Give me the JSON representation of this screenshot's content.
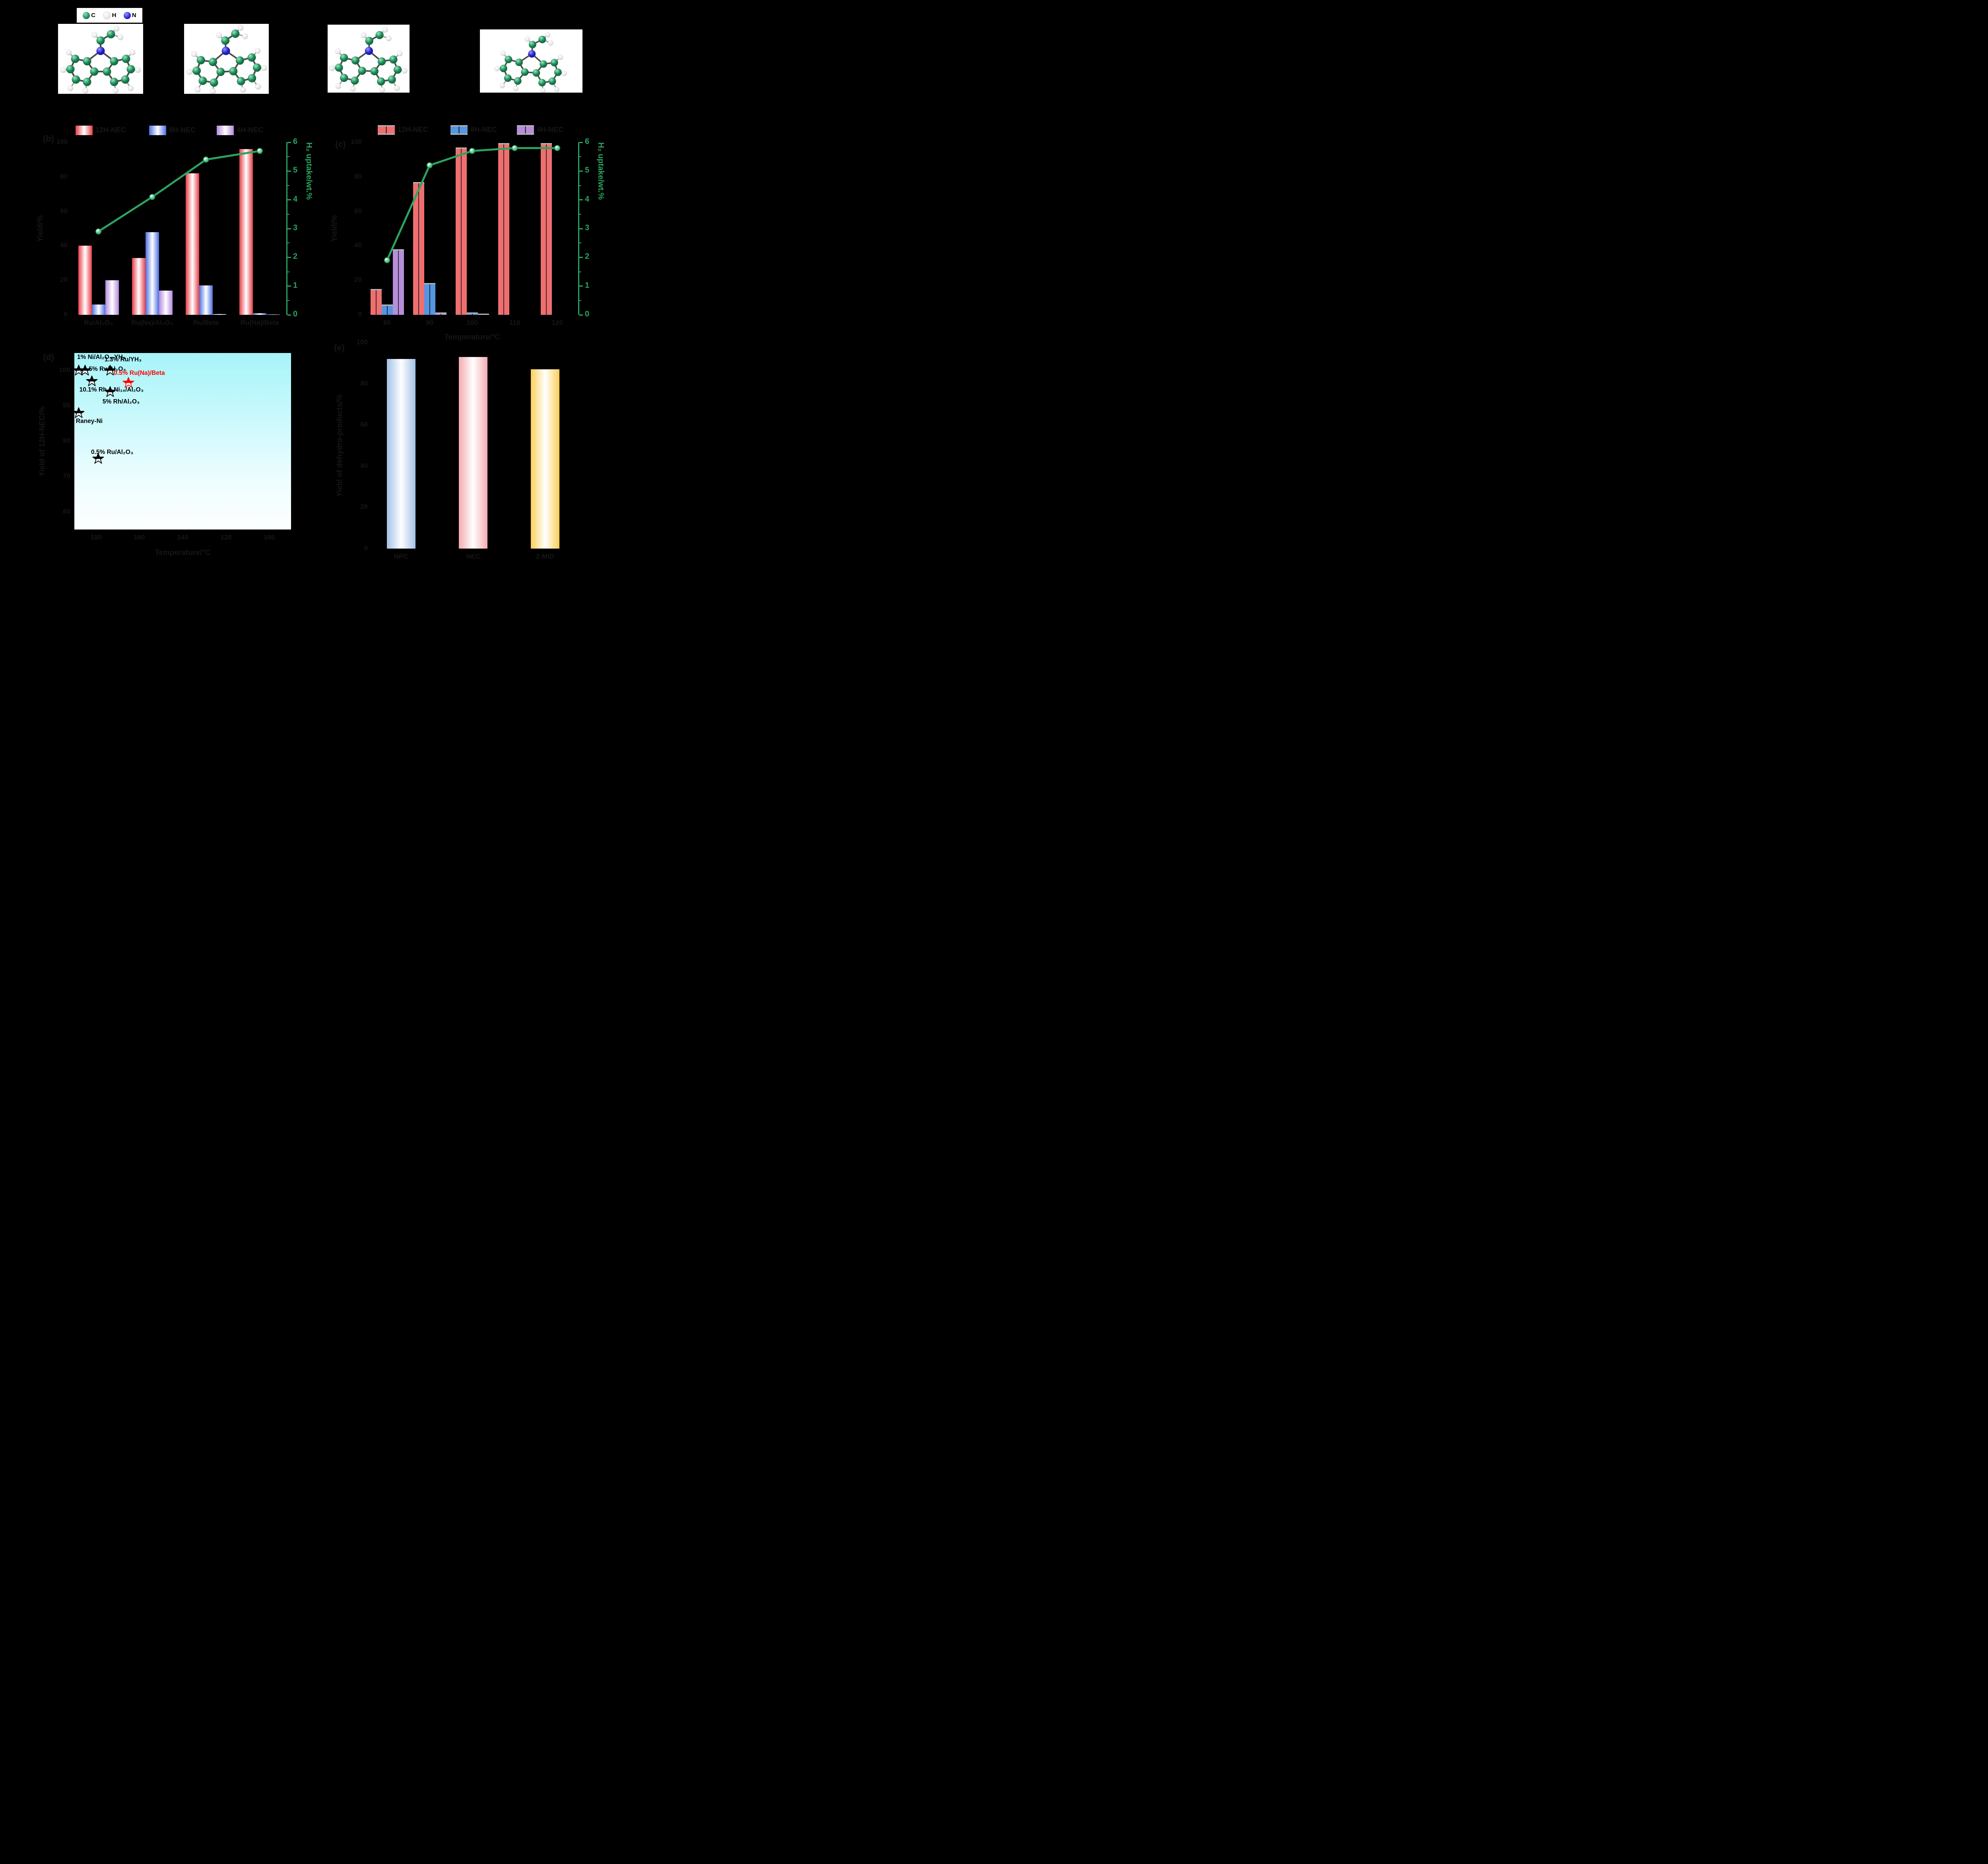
{
  "figure": {
    "bg": "#000000",
    "accent_green": "#2aa45f",
    "panel_bg_scatter_top": "#a6f4f9",
    "panel_labels": {
      "b": "(b)",
      "c": "(c)",
      "d": "(d)",
      "e": "(e)"
    }
  },
  "atom_legend": {
    "items": [
      {
        "symbol": "C",
        "color": "#1d8a57"
      },
      {
        "symbol": "H",
        "color": "#f2f2f2"
      },
      {
        "symbol": "N",
        "color": "#2525cf"
      }
    ]
  },
  "chart_data": [
    {
      "id": "b",
      "type": "bar+line",
      "legend": [
        "12H-NEC",
        "8H-NEC",
        "4H-NEC"
      ],
      "categories": [
        "Ru/Al₂O₃",
        "Ru(Na)/Al₂O₃",
        "Ru/Beta",
        "Ru(Na)/Beta"
      ],
      "series": [
        {
          "name": "12H-NEC",
          "edge": "#e73d46",
          "values": [
            40,
            33,
            82,
            96
          ]
        },
        {
          "name": "8H-NEC",
          "edge": "#4b6fe1",
          "values": [
            6,
            48,
            17,
            1
          ]
        },
        {
          "name": "4H-NEC",
          "edge": "#b489dd",
          "values": [
            20,
            14,
            0.5,
            0.3
          ]
        }
      ],
      "line": {
        "name": "H₂ uptake",
        "color": "#2aa45f",
        "values": [
          2.9,
          4.1,
          5.4,
          5.7
        ]
      },
      "ylabel": "Yield/%",
      "ylim": [
        0,
        100
      ],
      "yticks": [
        0,
        20,
        40,
        60,
        80,
        100
      ],
      "y2label": "H₂ uptake/wt.%",
      "y2lim": [
        0,
        6
      ],
      "y2ticks": [
        0,
        1,
        2,
        3,
        4,
        5,
        6
      ]
    },
    {
      "id": "c",
      "type": "bar+line",
      "legend": [
        "12H-NEC",
        "8H-NEC",
        "4H-NEC"
      ],
      "categories": [
        "80",
        "90",
        "100",
        "110",
        "120"
      ],
      "xlabel": "Temperature/°C",
      "series": [
        {
          "name": "12H-NEC",
          "edge": "#ee6f70",
          "values": [
            15,
            77,
            97,
            99.5,
            99.5
          ]
        },
        {
          "name": "8H-NEC",
          "edge": "#5596e0",
          "values": [
            6,
            18.5,
            1.3,
            0,
            0
          ]
        },
        {
          "name": "4H-NEC",
          "edge": "#b78fd9",
          "values": [
            38,
            1.5,
            0.5,
            0,
            0
          ]
        }
      ],
      "line": {
        "name": "H₂ uptake",
        "color": "#2aa45f",
        "values": [
          1.9,
          5.2,
          5.7,
          5.8,
          5.8
        ]
      },
      "ylabel": "Yield/%",
      "ylim": [
        0,
        100
      ],
      "yticks": [
        0,
        20,
        40,
        60,
        80,
        100
      ],
      "y2label": "H₂ uptake/wt.%",
      "y2lim": [
        0,
        6
      ],
      "y2ticks": [
        0,
        1,
        2,
        3,
        4,
        5,
        6
      ]
    },
    {
      "id": "d",
      "type": "scatter",
      "xlabel": "Temperature/°C",
      "ylabel": "Yield of 12H-NEC/%",
      "xlim": [
        190,
        90
      ],
      "ylim": [
        55,
        105
      ],
      "xticks": [
        180,
        160,
        140,
        120,
        100
      ],
      "yticks": [
        100,
        90,
        80,
        70,
        60
      ],
      "points": [
        {
          "label": "1% Ni/Al₂O₃-YH₃",
          "x": 188,
          "y": 100,
          "color": "black"
        },
        {
          "label": "5% Ru/Al₂O₃",
          "x": 185,
          "y": 100,
          "color": "black"
        },
        {
          "label": "10.1% Rh₀.₁Ni₁₀/Al₂O₃",
          "x": 182,
          "y": 97,
          "color": "black"
        },
        {
          "label": "1.3% Ru/YH₃",
          "x": 173.5,
          "y": 100,
          "color": "black"
        },
        {
          "label": "0.5% Ru(Na)/Beta",
          "x": 165,
          "y": 96.5,
          "color": "red"
        },
        {
          "label": "5% Rh/Al₂O₃",
          "x": 173.5,
          "y": 94,
          "color": "black"
        },
        {
          "label": "Raney-Ni",
          "x": 188,
          "y": 88,
          "color": "black"
        },
        {
          "label": "0.5% Ru/Al₂O₃",
          "x": 179,
          "y": 75,
          "color": "black"
        }
      ]
    },
    {
      "id": "e",
      "type": "bar",
      "categories": [
        "NPC",
        "NEC",
        "2-MID"
      ],
      "values": [
        92,
        93,
        87
      ],
      "edges": [
        "#a3c1e6",
        "#f3abb0",
        "#fbcf57"
      ],
      "ylabel": "Yield of dehydro-products/%",
      "ylim": [
        0,
        100
      ],
      "yticks": [
        0,
        20,
        40,
        60,
        80,
        100
      ]
    }
  ]
}
